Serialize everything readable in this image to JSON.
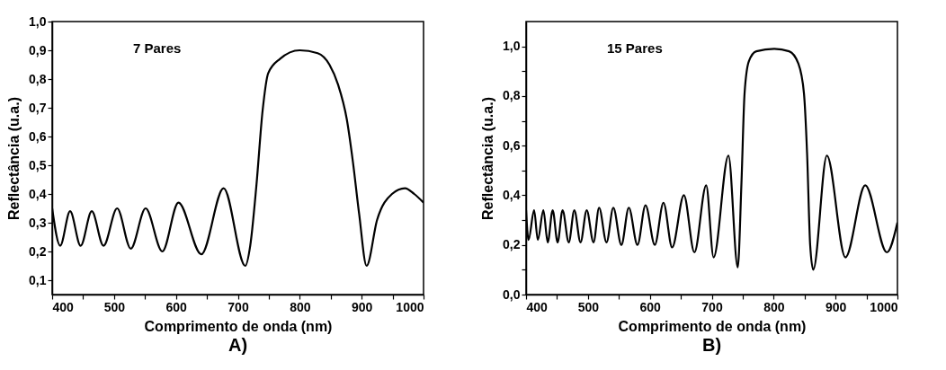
{
  "chart_data": [
    {
      "type": "line",
      "title": "A)",
      "xlabel": "Comprimento de onda (nm)",
      "ylabel": "Reflectância (u.a.)",
      "annotations": [
        "7 Pares"
      ],
      "grid": false,
      "marker": "none",
      "line_style": "solid",
      "xlim": [
        400,
        1000
      ],
      "ylim": [
        0.05,
        1.0
      ],
      "xticks": [
        400,
        {
          "value": 450,
          "label": null
        },
        500,
        {
          "value": 550,
          "label": null
        },
        600,
        {
          "value": 650,
          "label": null
        },
        700,
        {
          "value": 750,
          "label": null
        },
        800,
        {
          "value": 850,
          "label": null
        },
        900,
        {
          "value": 950,
          "label": null
        },
        1000
      ],
      "yticks": [
        {
          "value": 0.1,
          "label": "0,1"
        },
        {
          "value": 0.2,
          "label": "0,2"
        },
        {
          "value": 0.3,
          "label": "0,3"
        },
        {
          "value": 0.4,
          "label": "0,4"
        },
        {
          "value": 0.5,
          "label": "0,5"
        },
        {
          "value": 0.6,
          "label": "0,6"
        },
        {
          "value": 0.7,
          "label": "0,7"
        },
        {
          "value": 0.8,
          "label": "0,8"
        },
        {
          "value": 0.9,
          "label": "0,9"
        },
        {
          "value": 1.0,
          "label": "1,0"
        }
      ],
      "x": [
        400,
        413,
        429,
        446,
        464,
        483,
        505,
        527,
        551,
        578,
        604,
        641,
        677,
        712,
        720,
        730,
        740,
        749,
        768,
        800,
        829,
        848,
        862,
        876,
        886,
        896,
        908,
        925,
        949,
        970,
        985,
        1000
      ],
      "series": [
        {
          "color": "#000000",
          "values": [
            0.35,
            0.22,
            0.34,
            0.22,
            0.34,
            0.22,
            0.35,
            0.21,
            0.35,
            0.2,
            0.37,
            0.19,
            0.42,
            0.15,
            0.22,
            0.43,
            0.69,
            0.82,
            0.87,
            0.9,
            0.89,
            0.85,
            0.78,
            0.66,
            0.51,
            0.33,
            0.15,
            0.31,
            0.4,
            0.42,
            0.4,
            0.37
          ]
        }
      ]
    },
    {
      "type": "line",
      "title": "B)",
      "xlabel": "Comprimento de onda (nm)",
      "ylabel": "Reflectância (u.a.)",
      "annotations": [
        "15 Pares"
      ],
      "grid": false,
      "marker": "none",
      "line_style": "solid",
      "xlim": [
        400,
        1000
      ],
      "ylim": [
        0.0,
        1.1
      ],
      "xticks": [
        400,
        {
          "value": 450,
          "label": null
        },
        500,
        {
          "value": 550,
          "label": null
        },
        600,
        {
          "value": 650,
          "label": null
        },
        700,
        {
          "value": 750,
          "label": null
        },
        800,
        {
          "value": 850,
          "label": null
        },
        900,
        {
          "value": 950,
          "label": null
        },
        1000
      ],
      "yticks": [
        {
          "value": 0.0,
          "label": "0,0"
        },
        {
          "value": 0.1,
          "label": null
        },
        {
          "value": 0.2,
          "label": "0,2"
        },
        {
          "value": 0.3,
          "label": null
        },
        {
          "value": 0.4,
          "label": "0,4"
        },
        {
          "value": 0.5,
          "label": null
        },
        {
          "value": 0.6,
          "label": "0,6"
        },
        {
          "value": 0.7,
          "label": null
        },
        {
          "value": 0.8,
          "label": "0,8"
        },
        {
          "value": 0.9,
          "label": null
        },
        {
          "value": 1.0,
          "label": "1,0"
        }
      ],
      "x": [
        400,
        404,
        413,
        419,
        428,
        435,
        443,
        451,
        459,
        469,
        478,
        488,
        498,
        509,
        518,
        530,
        541,
        554,
        566,
        580,
        593,
        608,
        622,
        636,
        655,
        672,
        691,
        703,
        727,
        742,
        748,
        753,
        760,
        772,
        801,
        825,
        840,
        849,
        854,
        859,
        864,
        886,
        916,
        948,
        983,
        1000
      ],
      "series": [
        {
          "color": "#000000",
          "values": [
            0.34,
            0.22,
            0.34,
            0.22,
            0.34,
            0.21,
            0.34,
            0.21,
            0.34,
            0.21,
            0.34,
            0.21,
            0.34,
            0.21,
            0.35,
            0.21,
            0.35,
            0.2,
            0.35,
            0.2,
            0.36,
            0.2,
            0.37,
            0.19,
            0.4,
            0.17,
            0.44,
            0.15,
            0.56,
            0.11,
            0.45,
            0.81,
            0.94,
            0.98,
            0.99,
            0.98,
            0.93,
            0.81,
            0.57,
            0.2,
            0.1,
            0.56,
            0.15,
            0.44,
            0.17,
            0.29
          ]
        }
      ]
    }
  ]
}
